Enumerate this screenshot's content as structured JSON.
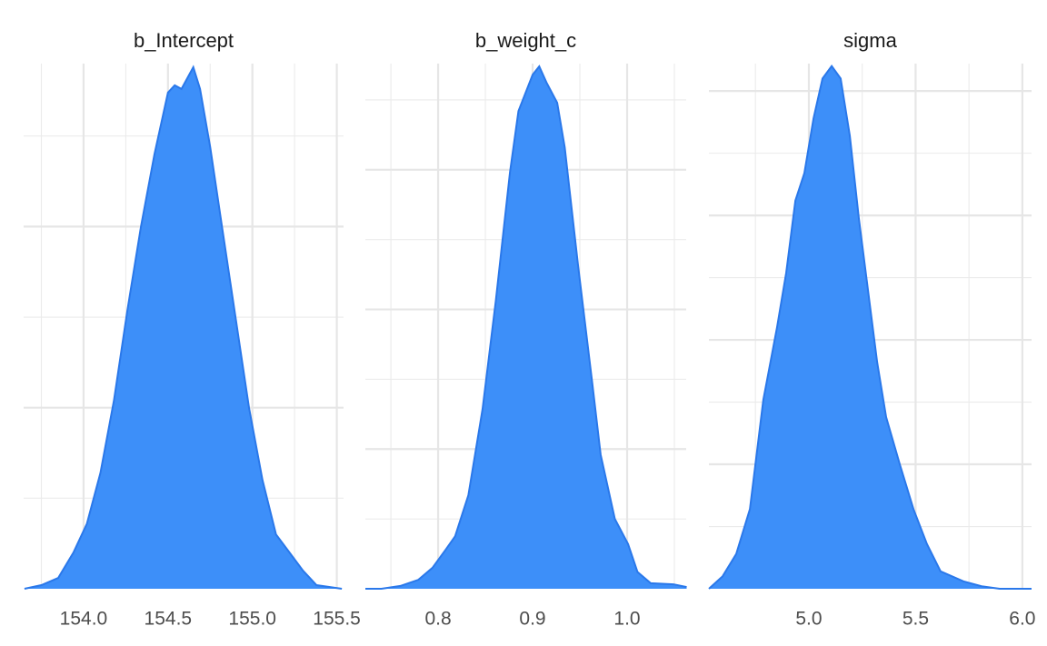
{
  "chart_data": [
    {
      "type": "density",
      "title": "b_Intercept",
      "color": "#3d8ff9",
      "line_color": "#2a78ea",
      "x": [
        153.65,
        153.75,
        153.85,
        153.94,
        154.02,
        154.1,
        154.18,
        154.26,
        154.34,
        154.42,
        154.5,
        154.54,
        154.58,
        154.65,
        154.69,
        154.75,
        154.82,
        154.9,
        154.98,
        155.06,
        155.14,
        155.22,
        155.3,
        155.38,
        155.53
      ],
      "values": [
        0,
        0.01,
        0.03,
        0.1,
        0.18,
        0.32,
        0.52,
        0.77,
        1.0,
        1.2,
        1.37,
        1.39,
        1.38,
        1.44,
        1.38,
        1.22,
        1.0,
        0.75,
        0.5,
        0.3,
        0.15,
        0.1,
        0.05,
        0.01,
        0
      ],
      "xlim": [
        153.645,
        155.54
      ],
      "xticks": [
        {
          "value": 154,
          "label": "154.0"
        },
        154.5,
        {
          "value": 155,
          "label": "155.0"
        },
        155.5
      ],
      "xminor": [
        153.75,
        154.25,
        154.75,
        155.25
      ],
      "ylim": [
        0,
        1.45
      ],
      "yticks": [
        0.5,
        1.0
      ],
      "yminor": [
        0.25,
        0.75,
        1.25
      ],
      "grid": true
    },
    {
      "type": "density",
      "title": "b_weight_c",
      "color": "#3d8ff9",
      "line_color": "#2a78ea",
      "x": [
        0.723,
        0.74,
        0.76,
        0.779,
        0.794,
        0.808,
        0.818,
        0.832,
        0.847,
        0.861,
        0.876,
        0.885,
        0.9,
        0.907,
        0.915,
        0.926,
        0.934,
        0.948,
        0.963,
        0.972,
        0.987,
        1.001,
        1.011,
        1.025,
        1.049,
        1.063
      ],
      "values": [
        0,
        0,
        0.1,
        0.32,
        0.75,
        1.4,
        1.88,
        3.35,
        6.43,
        10.3,
        14.9,
        17.1,
        18.4,
        18.7,
        18.1,
        17.4,
        15.8,
        11.6,
        7.4,
        4.8,
        2.5,
        1.6,
        0.6,
        0.2,
        0.16,
        0.06
      ],
      "xlim": [
        0.723,
        1.0625
      ],
      "xticks": [
        0.8,
        0.9,
        {
          "value": 1,
          "label": "1.0"
        }
      ],
      "xminor": [
        0.75,
        0.85,
        0.95,
        1.05
      ],
      "ylim": [
        0,
        18.8
      ],
      "yticks": [
        5,
        10,
        15
      ],
      "yminor": [
        2.5,
        7.5,
        12.5,
        17.5
      ],
      "grid": true
    },
    {
      "type": "density",
      "title": "sigma",
      "color": "#3d8ff9",
      "line_color": "#2a78ea",
      "x": [
        4.532,
        4.596,
        4.66,
        4.724,
        4.787,
        4.851,
        4.894,
        4.937,
        4.979,
        5.022,
        5.064,
        5.107,
        5.149,
        5.192,
        5.234,
        5.277,
        5.32,
        5.362,
        5.426,
        5.49,
        5.553,
        5.617,
        5.724,
        5.809,
        5.894,
        6.043
      ],
      "values": [
        0,
        0.05,
        0.14,
        0.32,
        0.76,
        1.05,
        1.27,
        1.56,
        1.67,
        1.89,
        2.05,
        2.1,
        2.05,
        1.82,
        1.49,
        1.2,
        0.91,
        0.69,
        0.5,
        0.32,
        0.18,
        0.07,
        0.03,
        0.01,
        0,
        0
      ],
      "xlim": [
        4.532,
        6.043
      ],
      "xticks": [
        {
          "value": 5,
          "label": "5.0"
        },
        5.5,
        {
          "value": 6,
          "label": "6.0"
        }
      ],
      "xminor": [
        4.75,
        5.25,
        5.75
      ],
      "ylim": [
        0,
        2.11
      ],
      "yticks": [
        0.5,
        1.0,
        1.5,
        2.0
      ],
      "yminor": [
        0.25,
        0.75,
        1.25,
        1.75
      ],
      "grid": true
    }
  ]
}
